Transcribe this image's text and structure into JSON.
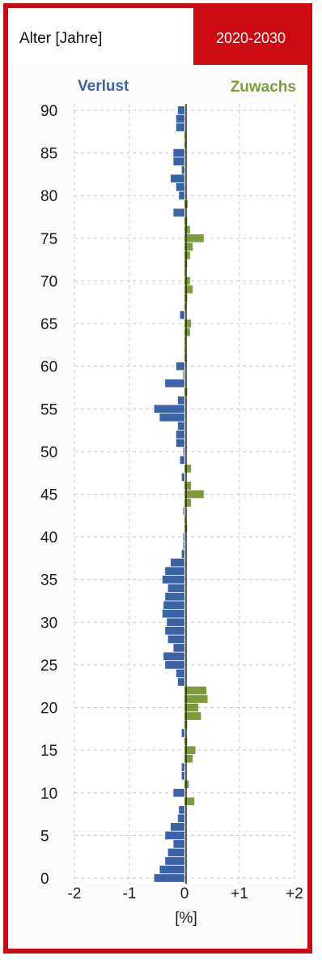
{
  "header": {
    "left_label": "Alter [Jahre]",
    "right_label": "2020-2030"
  },
  "colors": {
    "frame": "#cc0a12",
    "loss": "#3b63a6",
    "gain": "#7f9a3b",
    "header_right_bg": "#cc0a12"
  },
  "chart_data": {
    "type": "bar",
    "orientation": "horizontal",
    "ylabel": "Alter [Jahre]",
    "xlabel": "[%]",
    "xlim": [
      -2,
      2
    ],
    "ylim": [
      0,
      90
    ],
    "grid": true,
    "x_ticks": [
      "-2",
      "-1",
      "0",
      "+1",
      "+2"
    ],
    "y_ticks": [
      "0",
      "5",
      "10",
      "15",
      "20",
      "25",
      "30",
      "35",
      "40",
      "45",
      "50",
      "55",
      "60",
      "65",
      "70",
      "75",
      "80",
      "85",
      "90"
    ],
    "series_labels": {
      "loss": "Verlust",
      "gain": "Zuwachs"
    },
    "ages": [
      0,
      1,
      2,
      3,
      4,
      5,
      6,
      7,
      8,
      9,
      10,
      11,
      12,
      13,
      14,
      15,
      16,
      17,
      18,
      19,
      20,
      21,
      22,
      23,
      24,
      25,
      26,
      27,
      28,
      29,
      30,
      31,
      32,
      33,
      34,
      35,
      36,
      37,
      38,
      39,
      40,
      41,
      42,
      43,
      44,
      45,
      46,
      47,
      48,
      49,
      50,
      51,
      52,
      53,
      54,
      55,
      56,
      57,
      58,
      59,
      60,
      61,
      62,
      63,
      64,
      65,
      66,
      67,
      68,
      69,
      70,
      71,
      72,
      73,
      74,
      75,
      76,
      77,
      78,
      79,
      80,
      81,
      82,
      83,
      84,
      85,
      86,
      87,
      88,
      89,
      90
    ],
    "values": [
      -0.55,
      -0.45,
      -0.35,
      -0.3,
      -0.2,
      -0.35,
      -0.25,
      -0.12,
      -0.1,
      0.18,
      -0.2,
      0.08,
      -0.05,
      -0.05,
      0.15,
      0.2,
      0.05,
      -0.05,
      0.05,
      0.3,
      0.25,
      0.42,
      0.4,
      -0.12,
      -0.15,
      -0.35,
      -0.38,
      -0.2,
      -0.3,
      -0.35,
      -0.32,
      -0.4,
      -0.38,
      -0.35,
      -0.3,
      -0.4,
      -0.35,
      -0.25,
      -0.05,
      -0.02,
      -0.02,
      0.05,
      0.02,
      -0.02,
      0.12,
      0.35,
      0.12,
      -0.05,
      0.12,
      -0.08,
      -0.02,
      -0.15,
      -0.15,
      -0.12,
      -0.45,
      -0.55,
      -0.12,
      0.05,
      -0.35,
      -0.02,
      -0.15,
      0.04,
      0.02,
      0.03,
      0.1,
      0.12,
      -0.08,
      0.03,
      0.05,
      0.15,
      0.1,
      0.02,
      0.05,
      0.1,
      0.15,
      0.35,
      0.1,
      0.05,
      -0.2,
      0.06,
      -0.1,
      -0.15,
      -0.25,
      -0.05,
      -0.2,
      -0.2,
      0.03,
      0.02,
      -0.15,
      -0.15,
      -0.12
    ]
  }
}
